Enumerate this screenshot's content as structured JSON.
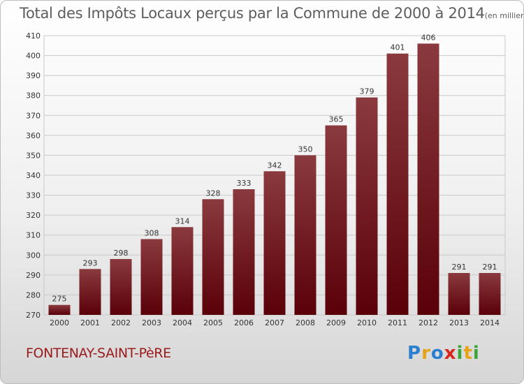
{
  "header": {
    "title": "Total des Impôts Locaux perçus par la Commune de 2000 à 2014",
    "unit": "(en milliers d'€)"
  },
  "footer": {
    "commune": "FONTENAY-SAINT-PèRE",
    "brand": "Proxiti",
    "brand_letters": [
      {
        "char": "P",
        "color": "#2a7fd0"
      },
      {
        "char": "r",
        "color": "#e6a317"
      },
      {
        "char": "o",
        "color": "#2a7fd0"
      },
      {
        "char": "x",
        "color": "#d9261c"
      },
      {
        "char": "i",
        "color": "#3aa63a"
      },
      {
        "char": "t",
        "color": "#e6a317"
      },
      {
        "char": "i",
        "color": "#3aa63a"
      }
    ]
  },
  "colors": {
    "bar_top": "#8a3a3e",
    "bar_bottom": "#5a0008",
    "grid": "#c9c9c9",
    "axis_text": "#333333"
  },
  "chart_data": {
    "type": "bar",
    "title": "Total des Impôts Locaux perçus par la Commune de 2000 à 2014",
    "xlabel": "",
    "ylabel": "",
    "categories": [
      "2000",
      "2001",
      "2002",
      "2003",
      "2004",
      "2005",
      "2006",
      "2007",
      "2008",
      "2009",
      "2010",
      "2011",
      "2012",
      "2013",
      "2014"
    ],
    "values": [
      275,
      293,
      298,
      308,
      314,
      328,
      333,
      342,
      350,
      365,
      379,
      401,
      406,
      291,
      291
    ],
    "value_labels": [
      "275",
      "293",
      "298",
      "308",
      "314",
      "328",
      "333",
      "342",
      "350",
      "365",
      "379",
      "401",
      "406",
      "291",
      "291"
    ],
    "ylim": [
      270,
      410
    ],
    "yticks": [
      270,
      280,
      290,
      300,
      310,
      320,
      330,
      340,
      350,
      360,
      370,
      380,
      390,
      400,
      410
    ],
    "ytick_labels": [
      "270",
      "280",
      "290",
      "300",
      "310",
      "320",
      "330",
      "340",
      "350",
      "360",
      "370",
      "380",
      "390",
      "400",
      "410"
    ],
    "grid": true
  }
}
